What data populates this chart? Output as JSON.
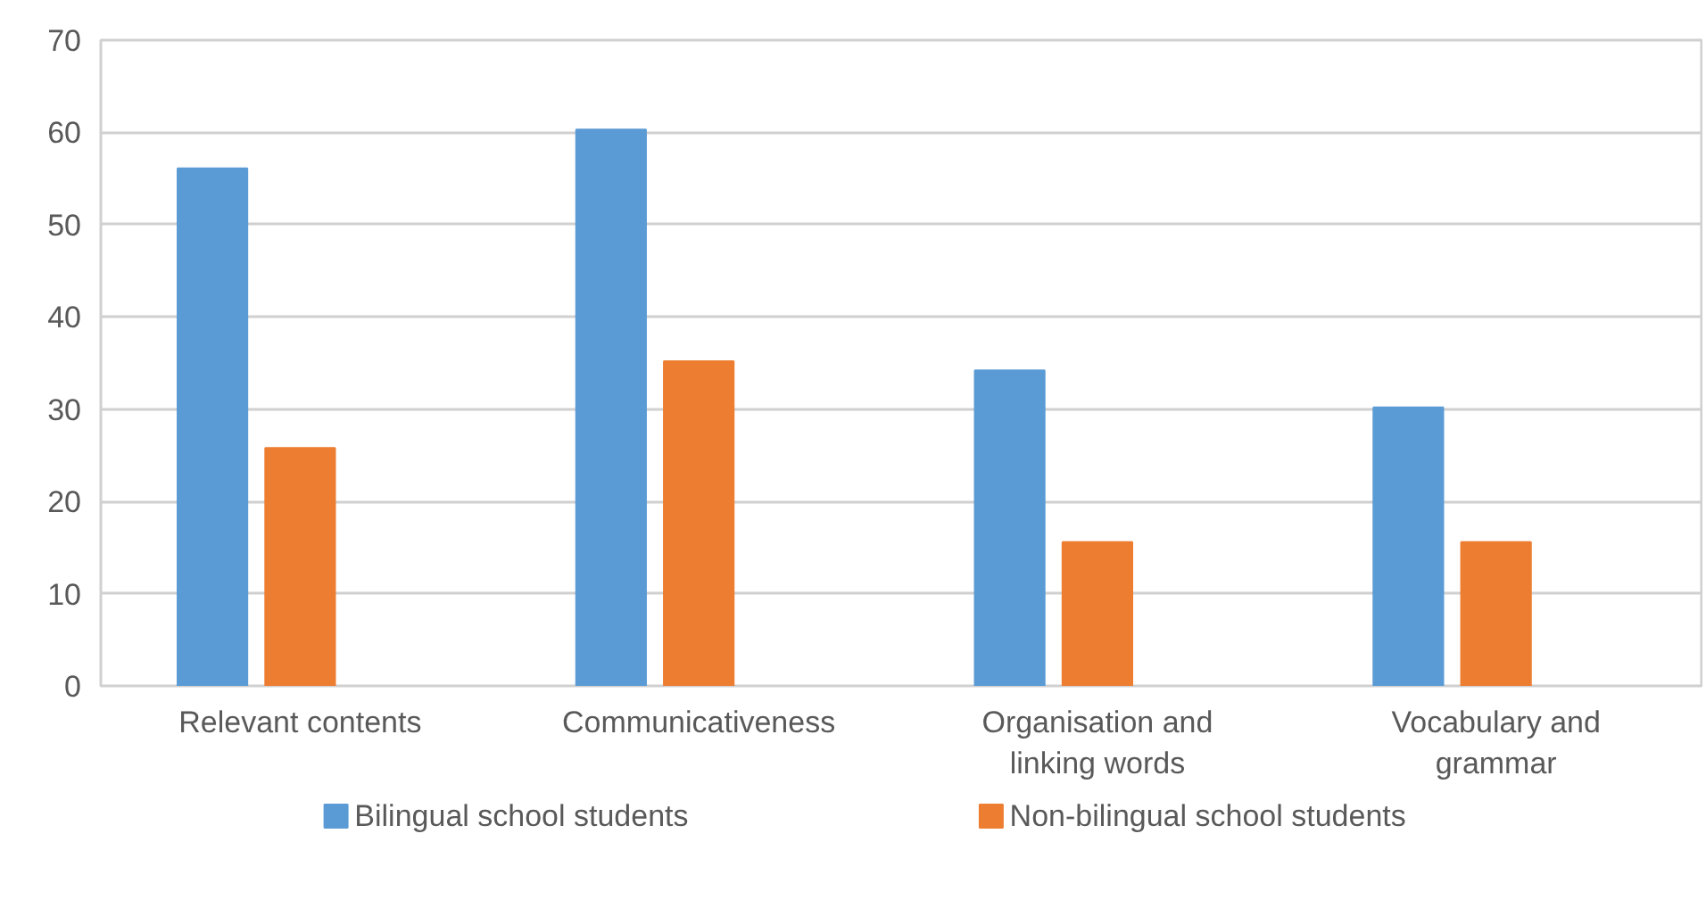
{
  "chart_data": {
    "type": "bar",
    "categories": [
      "Relevant contents",
      "Communicativeness",
      "Organisation and linking words",
      "Vocabulary and grammar"
    ],
    "series": [
      {
        "name": "Bilingual school students",
        "color": "#5b9bd5",
        "values": [
          56.1,
          60.3,
          34.2,
          30.2
        ]
      },
      {
        "name": "Non-bilingual school students",
        "color": "#ed7d31",
        "values": [
          25.8,
          35.2,
          15.6,
          15.6
        ]
      }
    ],
    "ylim": [
      0,
      70
    ],
    "yticks": [
      0,
      10,
      20,
      30,
      40,
      50,
      60,
      70
    ],
    "grid": "y",
    "legend": "bottom"
  }
}
